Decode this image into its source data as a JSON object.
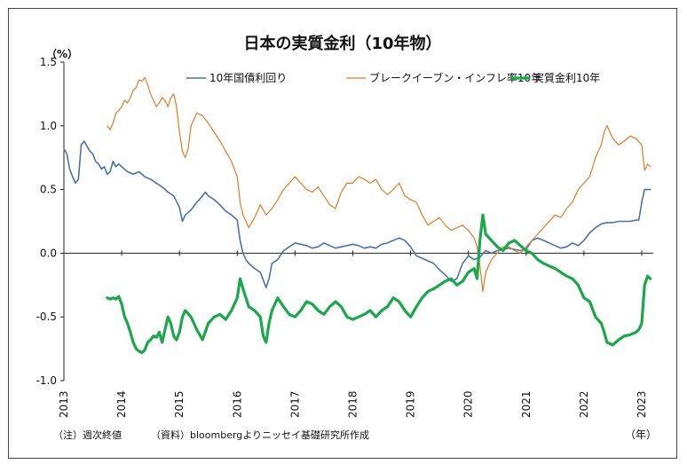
{
  "chart_data": {
    "type": "line",
    "title": "日本の実質金利（10年物）",
    "unit_label": "（%）",
    "x_unit_label": "（年）",
    "notes": [
      "（注）週次終値",
      "（資料）bloombergよりニッセイ基礎研究所作成"
    ],
    "ylim": [
      -1.0,
      1.5
    ],
    "y_ticks": [
      "1.5",
      "1.0",
      "0.5",
      "0.0",
      "-0.5",
      "-1.0"
    ],
    "xlim": [
      2013.0,
      2023.2
    ],
    "x_ticks": [
      "2013",
      "2014",
      "2015",
      "2016",
      "2017",
      "2018",
      "2019",
      "2020",
      "2021",
      "2022",
      "2023"
    ],
    "legend_position": "top",
    "colors": {
      "yield": "#4a72a8",
      "breakeven": "#e07b2a",
      "real": "#1aa84a",
      "axis_red": "#d11"
    },
    "series": [
      {
        "name": "10年国債利回り",
        "x": [
          2013.0,
          2013.05,
          2013.1,
          2013.15,
          2013.2,
          2013.25,
          2013.3,
          2013.35,
          2013.4,
          2013.45,
          2013.5,
          2013.55,
          2013.6,
          2013.65,
          2013.7,
          2013.75,
          2013.8,
          2013.85,
          2013.9,
          2013.95,
          2014.0,
          2014.1,
          2014.2,
          2014.3,
          2014.4,
          2014.5,
          2014.6,
          2014.7,
          2014.8,
          2014.9,
          2015.0,
          2015.05,
          2015.1,
          2015.2,
          2015.3,
          2015.4,
          2015.45,
          2015.5,
          2015.6,
          2015.7,
          2015.8,
          2015.9,
          2016.0,
          2016.05,
          2016.1,
          2016.15,
          2016.2,
          2016.3,
          2016.4,
          2016.5,
          2016.55,
          2016.6,
          2016.7,
          2016.8,
          2016.9,
          2017.0,
          2017.1,
          2017.2,
          2017.3,
          2017.4,
          2017.5,
          2017.6,
          2017.7,
          2017.8,
          2017.9,
          2018.0,
          2018.1,
          2018.2,
          2018.3,
          2018.4,
          2018.5,
          2018.6,
          2018.7,
          2018.8,
          2018.9,
          2019.0,
          2019.1,
          2019.2,
          2019.3,
          2019.4,
          2019.5,
          2019.6,
          2019.7,
          2019.8,
          2019.9,
          2020.0,
          2020.1,
          2020.2,
          2020.3,
          2020.4,
          2020.5,
          2020.6,
          2020.7,
          2020.8,
          2020.9,
          2021.0,
          2021.1,
          2021.2,
          2021.3,
          2021.4,
          2021.5,
          2021.6,
          2021.7,
          2021.8,
          2021.9,
          2022.0,
          2022.1,
          2022.2,
          2022.3,
          2022.4,
          2022.5,
          2022.6,
          2022.7,
          2022.8,
          2022.9,
          2022.95,
          2023.0,
          2023.05,
          2023.1,
          2023.15
        ],
        "values": [
          0.82,
          0.78,
          0.66,
          0.6,
          0.55,
          0.58,
          0.85,
          0.88,
          0.84,
          0.8,
          0.78,
          0.72,
          0.7,
          0.66,
          0.68,
          0.62,
          0.64,
          0.72,
          0.68,
          0.7,
          0.68,
          0.64,
          0.62,
          0.64,
          0.6,
          0.58,
          0.55,
          0.52,
          0.48,
          0.45,
          0.36,
          0.25,
          0.3,
          0.34,
          0.4,
          0.45,
          0.48,
          0.45,
          0.42,
          0.38,
          0.33,
          0.3,
          0.26,
          0.1,
          0.0,
          -0.05,
          -0.08,
          -0.12,
          -0.15,
          -0.27,
          -0.2,
          -0.08,
          -0.05,
          0.02,
          0.05,
          0.08,
          0.07,
          0.06,
          0.04,
          0.05,
          0.08,
          0.06,
          0.04,
          0.05,
          0.06,
          0.07,
          0.06,
          0.04,
          0.05,
          0.04,
          0.07,
          0.08,
          0.1,
          0.12,
          0.1,
          0.05,
          -0.02,
          -0.04,
          -0.06,
          -0.08,
          -0.13,
          -0.17,
          -0.22,
          -0.2,
          -0.08,
          -0.02,
          -0.05,
          -0.03,
          0.02,
          0.0,
          0.02,
          0.03,
          0.04,
          0.03,
          0.02,
          0.03,
          0.1,
          0.12,
          0.1,
          0.08,
          0.06,
          0.04,
          0.05,
          0.08,
          0.06,
          0.1,
          0.16,
          0.2,
          0.23,
          0.24,
          0.24,
          0.25,
          0.25,
          0.25,
          0.26,
          0.26,
          0.4,
          0.5,
          0.5,
          0.5
        ]
      },
      {
        "name": "ブレークイーブン・インフレ率10年",
        "x": [
          2013.75,
          2013.8,
          2013.85,
          2013.9,
          2013.95,
          2014.0,
          2014.05,
          2014.1,
          2014.15,
          2014.2,
          2014.25,
          2014.3,
          2014.35,
          2014.4,
          2014.45,
          2014.5,
          2014.55,
          2014.6,
          2014.65,
          2014.7,
          2014.75,
          2014.8,
          2014.85,
          2014.9,
          2014.95,
          2015.0,
          2015.05,
          2015.1,
          2015.15,
          2015.2,
          2015.25,
          2015.3,
          2015.4,
          2015.5,
          2015.6,
          2015.7,
          2015.8,
          2015.9,
          2016.0,
          2016.05,
          2016.1,
          2016.15,
          2016.2,
          2016.3,
          2016.4,
          2016.5,
          2016.6,
          2016.7,
          2016.8,
          2016.9,
          2017.0,
          2017.1,
          2017.2,
          2017.3,
          2017.4,
          2017.5,
          2017.6,
          2017.7,
          2017.8,
          2017.9,
          2018.0,
          2018.1,
          2018.2,
          2018.3,
          2018.4,
          2018.5,
          2018.6,
          2018.7,
          2018.8,
          2018.9,
          2019.0,
          2019.1,
          2019.2,
          2019.3,
          2019.4,
          2019.5,
          2019.6,
          2019.7,
          2019.8,
          2019.9,
          2020.0,
          2020.1,
          2020.15,
          2020.2,
          2020.25,
          2020.3,
          2020.4,
          2020.5,
          2020.6,
          2020.7,
          2020.8,
          2020.9,
          2021.0,
          2021.1,
          2021.2,
          2021.3,
          2021.4,
          2021.5,
          2021.6,
          2021.7,
          2021.8,
          2021.9,
          2022.0,
          2022.1,
          2022.2,
          2022.3,
          2022.35,
          2022.4,
          2022.5,
          2022.6,
          2022.7,
          2022.8,
          2022.9,
          2023.0,
          2023.05,
          2023.1,
          2023.15
        ],
        "values": [
          1.0,
          0.97,
          1.02,
          1.1,
          1.12,
          1.15,
          1.2,
          1.18,
          1.22,
          1.28,
          1.3,
          1.36,
          1.35,
          1.38,
          1.32,
          1.25,
          1.2,
          1.15,
          1.18,
          1.22,
          1.2,
          1.15,
          1.22,
          1.25,
          1.15,
          0.95,
          0.8,
          0.75,
          0.82,
          1.0,
          1.05,
          1.1,
          1.08,
          1.02,
          0.95,
          0.88,
          0.8,
          0.72,
          0.6,
          0.4,
          0.3,
          0.25,
          0.2,
          0.28,
          0.38,
          0.3,
          0.35,
          0.42,
          0.5,
          0.55,
          0.6,
          0.55,
          0.5,
          0.48,
          0.52,
          0.45,
          0.38,
          0.35,
          0.48,
          0.55,
          0.55,
          0.6,
          0.58,
          0.55,
          0.58,
          0.5,
          0.46,
          0.5,
          0.55,
          0.45,
          0.42,
          0.4,
          0.3,
          0.22,
          0.25,
          0.28,
          0.22,
          0.18,
          0.2,
          0.22,
          0.18,
          0.12,
          0.05,
          -0.1,
          -0.3,
          -0.15,
          -0.05,
          0.0,
          0.05,
          0.05,
          0.02,
          0.0,
          0.05,
          0.1,
          0.15,
          0.2,
          0.25,
          0.3,
          0.28,
          0.35,
          0.4,
          0.5,
          0.55,
          0.6,
          0.75,
          0.85,
          0.95,
          1.0,
          0.9,
          0.85,
          0.88,
          0.92,
          0.9,
          0.85,
          0.65,
          0.7,
          0.68
        ]
      },
      {
        "name": "実質金利10年",
        "x": [
          2013.75,
          2013.8,
          2013.85,
          2013.9,
          2013.95,
          2014.0,
          2014.05,
          2014.1,
          2014.15,
          2014.2,
          2014.25,
          2014.3,
          2014.35,
          2014.4,
          2014.45,
          2014.5,
          2014.55,
          2014.6,
          2014.65,
          2014.7,
          2014.75,
          2014.8,
          2014.85,
          2014.9,
          2014.95,
          2015.0,
          2015.05,
          2015.1,
          2015.2,
          2015.3,
          2015.4,
          2015.5,
          2015.6,
          2015.7,
          2015.8,
          2015.9,
          2016.0,
          2016.05,
          2016.1,
          2016.15,
          2016.2,
          2016.3,
          2016.4,
          2016.45,
          2016.5,
          2016.55,
          2016.6,
          2016.7,
          2016.8,
          2016.9,
          2017.0,
          2017.1,
          2017.2,
          2017.3,
          2017.4,
          2017.5,
          2017.6,
          2017.7,
          2017.8,
          2017.9,
          2018.0,
          2018.1,
          2018.2,
          2018.3,
          2018.4,
          2018.5,
          2018.6,
          2018.7,
          2018.8,
          2018.9,
          2019.0,
          2019.1,
          2019.2,
          2019.3,
          2019.4,
          2019.5,
          2019.6,
          2019.7,
          2019.8,
          2019.9,
          2020.0,
          2020.1,
          2020.15,
          2020.2,
          2020.25,
          2020.3,
          2020.4,
          2020.5,
          2020.6,
          2020.7,
          2020.8,
          2020.9,
          2021.0,
          2021.1,
          2021.2,
          2021.3,
          2021.4,
          2021.5,
          2021.6,
          2021.7,
          2021.8,
          2021.9,
          2022.0,
          2022.1,
          2022.2,
          2022.3,
          2022.35,
          2022.4,
          2022.5,
          2022.6,
          2022.7,
          2022.8,
          2022.9,
          2022.95,
          2023.0,
          2023.05,
          2023.1,
          2023.15
        ],
        "values": [
          -0.35,
          -0.36,
          -0.35,
          -0.36,
          -0.34,
          -0.4,
          -0.5,
          -0.55,
          -0.62,
          -0.7,
          -0.75,
          -0.77,
          -0.78,
          -0.76,
          -0.7,
          -0.68,
          -0.65,
          -0.66,
          -0.62,
          -0.7,
          -0.6,
          -0.5,
          -0.55,
          -0.65,
          -0.68,
          -0.62,
          -0.5,
          -0.45,
          -0.5,
          -0.6,
          -0.68,
          -0.55,
          -0.5,
          -0.48,
          -0.52,
          -0.45,
          -0.35,
          -0.2,
          -0.28,
          -0.35,
          -0.42,
          -0.45,
          -0.5,
          -0.65,
          -0.7,
          -0.55,
          -0.45,
          -0.35,
          -0.42,
          -0.48,
          -0.5,
          -0.45,
          -0.38,
          -0.4,
          -0.45,
          -0.48,
          -0.42,
          -0.38,
          -0.42,
          -0.5,
          -0.52,
          -0.5,
          -0.48,
          -0.45,
          -0.5,
          -0.45,
          -0.42,
          -0.35,
          -0.38,
          -0.45,
          -0.5,
          -0.42,
          -0.35,
          -0.3,
          -0.28,
          -0.25,
          -0.22,
          -0.2,
          -0.25,
          -0.22,
          -0.15,
          -0.12,
          -0.2,
          0.1,
          0.3,
          0.15,
          0.1,
          0.05,
          0.02,
          0.08,
          0.1,
          0.06,
          0.02,
          0.0,
          -0.05,
          -0.08,
          -0.1,
          -0.12,
          -0.15,
          -0.18,
          -0.2,
          -0.25,
          -0.35,
          -0.38,
          -0.5,
          -0.55,
          -0.62,
          -0.7,
          -0.72,
          -0.68,
          -0.65,
          -0.64,
          -0.62,
          -0.6,
          -0.55,
          -0.25,
          -0.18,
          -0.2
        ]
      }
    ]
  }
}
